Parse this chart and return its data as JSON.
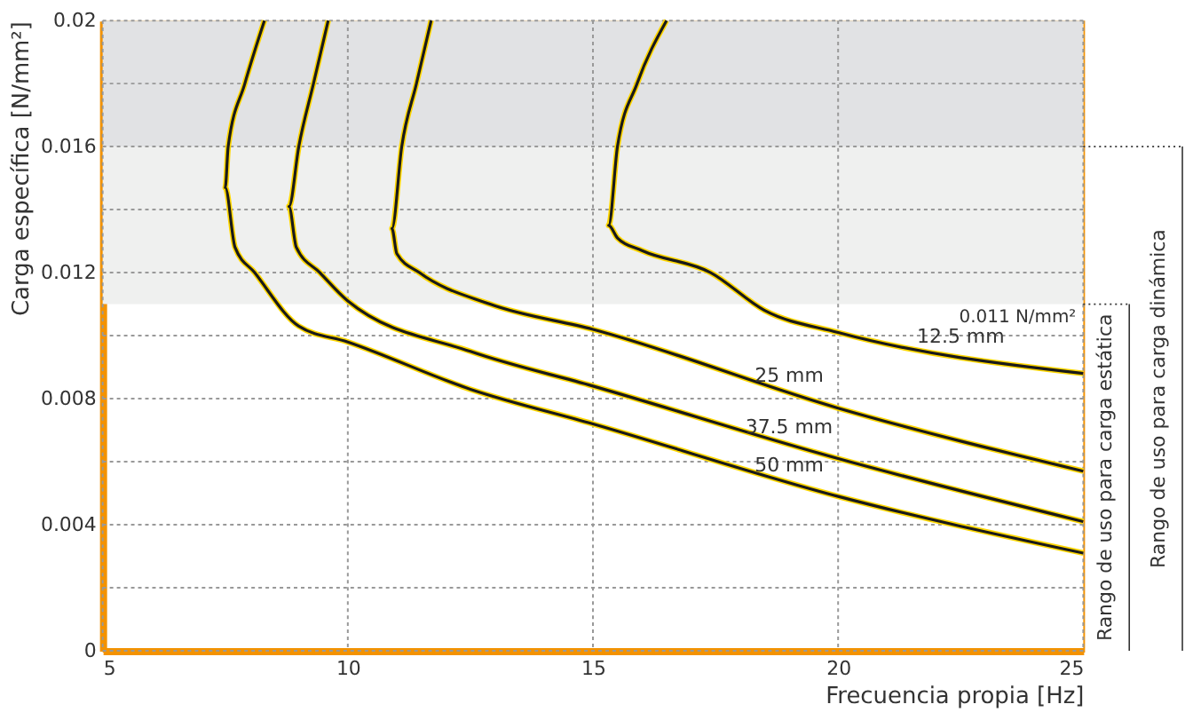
{
  "chart_data": {
    "type": "line",
    "xlabel": "Frecuencia propia [Hz]",
    "ylabel": "Carga específica [N/mm²]",
    "xlim": [
      5,
      25
    ],
    "ylim": [
      0,
      0.02
    ],
    "xticks": [
      5,
      10,
      15,
      20,
      25
    ],
    "yticks": [
      0,
      {
        "value": 0.002,
        "label": null
      },
      0.004,
      {
        "value": 0.006,
        "label": null
      },
      0.008,
      {
        "value": 0.01,
        "label": null
      },
      0.012,
      {
        "value": 0.014,
        "label": null
      },
      0.016,
      {
        "value": 0.018,
        "label": null
      },
      0.02
    ],
    "grid": true,
    "marker": "none",
    "line_style": "solid",
    "series": [
      {
        "name": "12.5 mm",
        "color": "#1a1a1a",
        "x": [
          16.5,
          15.9,
          15.5,
          15.32,
          15.5,
          16.0,
          17.4,
          18.5,
          20.0,
          25.0
        ],
        "values": [
          0.02,
          0.018,
          0.016,
          0.0135,
          0.0131,
          0.0127,
          0.012,
          0.0108,
          0.0101,
          0.0088
        ]
      },
      {
        "name": "25 mm",
        "color": "#1a1a1a",
        "x": [
          11.7,
          11.4,
          11.1,
          10.9,
          11.0,
          11.46,
          12.9,
          15.0,
          20.0,
          25.0
        ],
        "values": [
          0.02,
          0.018,
          0.016,
          0.0134,
          0.0126,
          0.012,
          0.011,
          0.0102,
          0.0077,
          0.0057
        ]
      },
      {
        "name": "37.5 mm",
        "color": "#1a1a1a",
        "x": [
          9.6,
          9.3,
          9.0,
          8.8,
          8.95,
          9.43,
          10.0,
          12.5,
          15.0,
          20.0,
          25.0
        ],
        "values": [
          0.02,
          0.018,
          0.016,
          0.0141,
          0.0128,
          0.012,
          0.0111,
          0.0095,
          0.0084,
          0.0061,
          0.0041
        ]
      },
      {
        "name": "50 mm",
        "color": "#1a1a1a",
        "x": [
          8.3,
          7.9,
          7.56,
          7.5,
          7.7,
          8.1,
          9.0,
          10.0,
          12.5,
          15.0,
          20.0,
          25.0
        ],
        "values": [
          0.02,
          0.018,
          0.016,
          0.0147,
          0.0128,
          0.012,
          0.0103,
          0.0098,
          0.0083,
          0.0072,
          0.0049,
          0.0031
        ]
      }
    ],
    "bands": [
      {
        "axis": "y",
        "from": 0.011,
        "to": 0.016,
        "color": "#eff0ef"
      },
      {
        "axis": "y",
        "from": 0.016,
        "to": 0.02,
        "color": "#e1e2e4"
      }
    ],
    "annotations": [
      {
        "text": "0.011 N/mm²",
        "x": 25,
        "y": 0.011
      },
      "Rango de uso para carga estática",
      "Rango de uso para carga dinámica"
    ]
  }
}
